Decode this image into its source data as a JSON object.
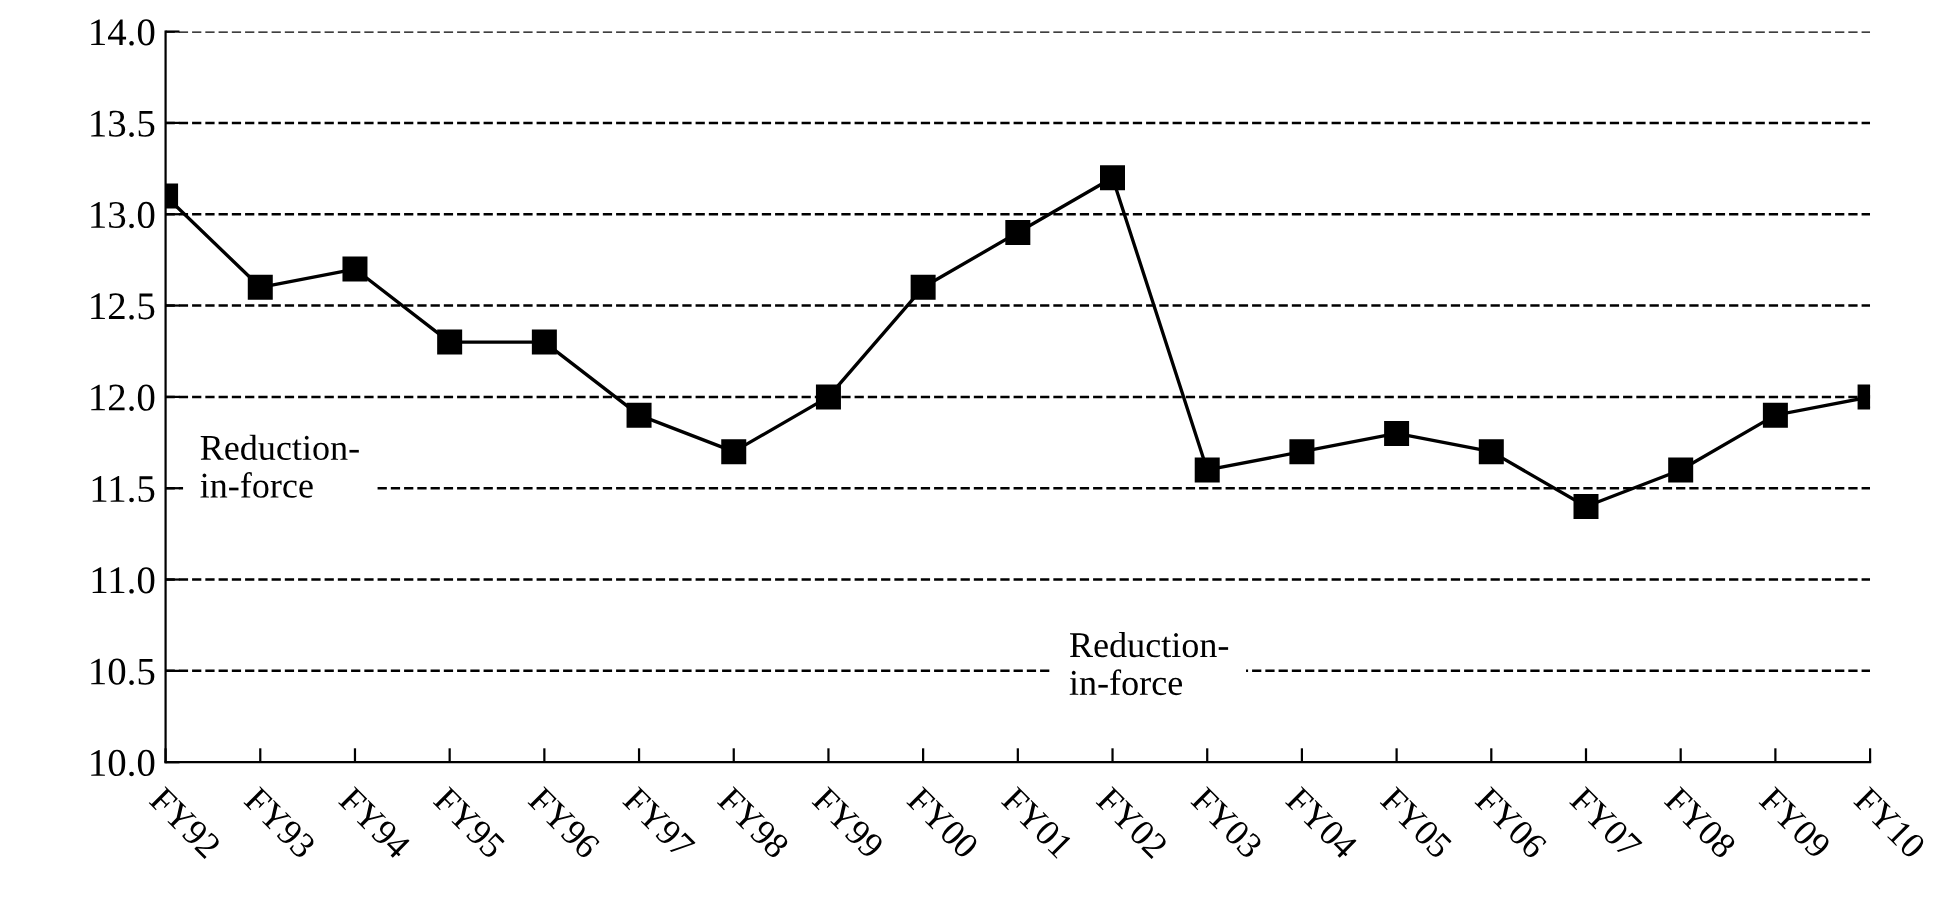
{
  "chart_data": {
    "type": "line",
    "categories": [
      "FY92",
      "FY93",
      "FY94",
      "FY95",
      "FY96",
      "FY97",
      "FY98",
      "FY99",
      "FY00",
      "FY01",
      "FY02",
      "FY03",
      "FY04",
      "FY05",
      "FY06",
      "FY07",
      "FY08",
      "FY09",
      "FY10"
    ],
    "series": [
      {
        "color": "#000000",
        "values": [
          13.1,
          12.6,
          12.7,
          12.3,
          12.3,
          11.9,
          11.7,
          12.0,
          12.6,
          12.9,
          13.2,
          11.6,
          11.7,
          11.8,
          11.7,
          11.4,
          11.6,
          11.9,
          12.0
        ]
      }
    ],
    "ylim": [
      10.0,
      14.0
    ],
    "yticks": [
      {
        "value": 10.0,
        "label": "10.0"
      },
      {
        "value": 10.5,
        "label": "10.5"
      },
      {
        "value": 11.0,
        "label": "11.0"
      },
      {
        "value": 11.5,
        "label": "11.5"
      },
      {
        "value": 12.0,
        "label": "12.0"
      },
      {
        "value": 12.5,
        "label": "12.5"
      },
      {
        "value": 13.0,
        "label": "13.0"
      },
      {
        "value": 13.5,
        "label": "13.5"
      },
      {
        "value": 14.0,
        "label": "14.0"
      }
    ],
    "grid": "y",
    "marker": "square",
    "line_style": "solid",
    "annotations": [
      "Reduction-\nin-force",
      "Reduction-\nin-force"
    ]
  }
}
